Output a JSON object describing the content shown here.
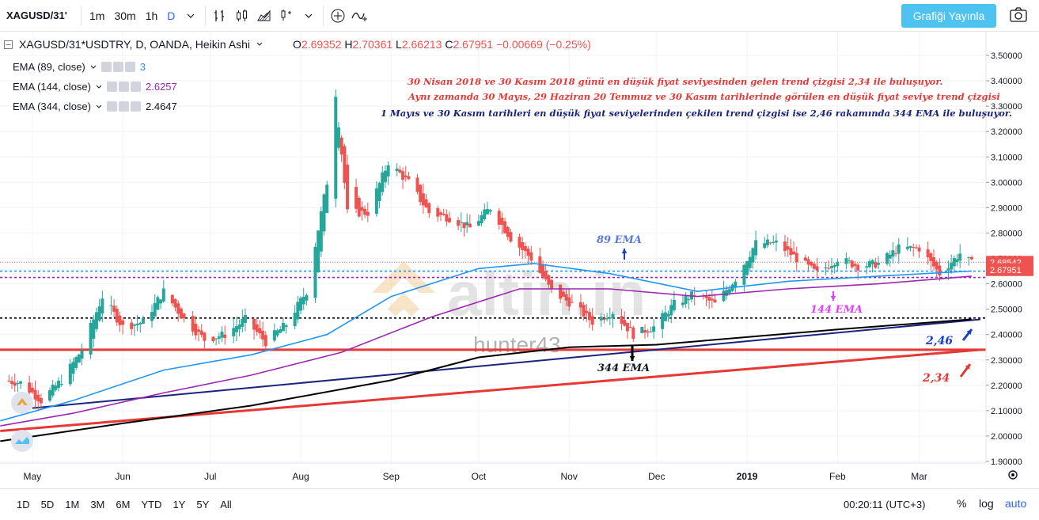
{
  "toolbar": {
    "symbol": "XAGUSD/31'",
    "timeframes": [
      "1m",
      "30m",
      "1h",
      "D"
    ],
    "publish_label": "Grafiği Yayınla"
  },
  "legend": {
    "title": "XAGUSD/31*USDTRY, D, OANDA, Heikin Ashi",
    "open_label": "O",
    "open": "2.69352",
    "high_label": "H",
    "high": "2.70361",
    "low_label": "L",
    "low": "2.66213",
    "close_label": "C",
    "close": "2.67951",
    "change": "−0.00669 (−0.25%)",
    "indicators": [
      {
        "label": "EMA (89, close)",
        "value": "3",
        "color": "#2196f3"
      },
      {
        "label": "EMA (144, close)",
        "value": "2.6257",
        "color": "#9c27b0"
      },
      {
        "label": "EMA (344, close)",
        "value": "2.4647",
        "color": "#131722"
      }
    ]
  },
  "annotations": {
    "note1": "30 Nisan 2018 ve 30 Kasım 2018 günü en düşük fiyat seviyesinden gelen trend çizgisi 2,34 ile buluşuyor.",
    "note2": "Aynı zamanda 30 Mayıs, 29 Haziran 20 Temmuz ve 30 Kasım tarihlerinde görülen en düşük fiyat seviye trend çizgisi",
    "note3": "1 Mayıs ve 30 Kasım tarihleri en düşük fiyat seviyelerinden çekilen trend çizgisi ise 2,46 rakamında 344 EMA  ile buluşuyor.",
    "ema89": "89 EMA",
    "ema144": "144 EMA",
    "ema344": "344 EMA",
    "level246": "2,46",
    "level234": "2,34",
    "watermark": "hunter43",
    "logo_text": "altin.in"
  },
  "bottom": {
    "ranges": [
      "1D",
      "5D",
      "1M",
      "3M",
      "6M",
      "YTD",
      "1Y",
      "5Y",
      "All"
    ],
    "clock": "00:20:11 (UTC+3)",
    "percent": "%",
    "log": "log",
    "auto": "auto"
  },
  "chart_data": {
    "type": "candlestick",
    "style": "Heikin Ashi",
    "x_tick_labels": [
      "May",
      "Jun",
      "Jul",
      "Aug",
      "Sep",
      "Oct",
      "Nov",
      "Dec",
      "2019",
      "Feb",
      "Mar"
    ],
    "y_ticks": [
      1.9,
      2.0,
      2.1,
      2.2,
      2.3,
      2.4,
      2.5,
      2.6,
      2.7,
      2.8,
      2.9,
      3.0,
      3.1,
      3.2,
      3.3,
      3.4,
      3.5
    ],
    "y_tick_labels": [
      "1.90000",
      "2.00000",
      "2.10000",
      "2.20000",
      "2.30000",
      "2.40000",
      "2.50000",
      "2.60000",
      "2.70000",
      "2.80000",
      "2.90000",
      "3.00000",
      "3.10000",
      "3.20000",
      "3.30000",
      "3.40000",
      "3.50000"
    ],
    "ylim": [
      1.88,
      3.53
    ],
    "price_label_high": "2.68542",
    "price_label_close": "2.67951",
    "close_points": [
      [
        "2018-04-20",
        2.22
      ],
      [
        "2018-04-27",
        2.21
      ],
      [
        "2018-05-04",
        2.14
      ],
      [
        "2018-05-11",
        2.22
      ],
      [
        "2018-05-18",
        2.34
      ],
      [
        "2018-05-25",
        2.55
      ],
      [
        "2018-06-01",
        2.43
      ],
      [
        "2018-06-08",
        2.45
      ],
      [
        "2018-06-15",
        2.57
      ],
      [
        "2018-06-22",
        2.46
      ],
      [
        "2018-06-29",
        2.38
      ],
      [
        "2018-07-06",
        2.4
      ],
      [
        "2018-07-13",
        2.46
      ],
      [
        "2018-07-20",
        2.37
      ],
      [
        "2018-07-27",
        2.44
      ],
      [
        "2018-08-03",
        2.57
      ],
      [
        "2018-08-10",
        3.0
      ],
      [
        "2018-08-13",
        3.35
      ],
      [
        "2018-08-17",
        2.88
      ],
      [
        "2018-08-24",
        2.88
      ],
      [
        "2018-08-31",
        3.08
      ],
      [
        "2018-09-07",
        3.0
      ],
      [
        "2018-09-14",
        2.88
      ],
      [
        "2018-09-21",
        2.86
      ],
      [
        "2018-09-28",
        2.82
      ],
      [
        "2018-10-05",
        2.9
      ],
      [
        "2018-10-12",
        2.78
      ],
      [
        "2018-10-19",
        2.7
      ],
      [
        "2018-10-26",
        2.57
      ],
      [
        "2018-11-02",
        2.52
      ],
      [
        "2018-11-09",
        2.45
      ],
      [
        "2018-11-16",
        2.49
      ],
      [
        "2018-11-23",
        2.4
      ],
      [
        "2018-11-30",
        2.43
      ],
      [
        "2018-12-07",
        2.52
      ],
      [
        "2018-12-14",
        2.56
      ],
      [
        "2018-12-21",
        2.52
      ],
      [
        "2018-12-28",
        2.62
      ],
      [
        "2019-01-04",
        2.76
      ],
      [
        "2019-01-11",
        2.76
      ],
      [
        "2019-01-18",
        2.7
      ],
      [
        "2019-01-25",
        2.64
      ],
      [
        "2019-02-01",
        2.7
      ],
      [
        "2019-02-08",
        2.67
      ],
      [
        "2019-02-15",
        2.68
      ],
      [
        "2019-02-22",
        2.74
      ],
      [
        "2019-03-01",
        2.74
      ],
      [
        "2019-03-08",
        2.64
      ],
      [
        "2019-03-15",
        2.72
      ],
      [
        "2019-03-19",
        2.68
      ]
    ],
    "series": [
      {
        "name": "EMA (89, close)",
        "color": "#2196f3",
        "points": [
          [
            "2018-04-20",
            2.06
          ],
          [
            "2018-05-15",
            2.14
          ],
          [
            "2018-06-15",
            2.26
          ],
          [
            "2018-07-15",
            2.32
          ],
          [
            "2018-08-10",
            2.4
          ],
          [
            "2018-09-01",
            2.55
          ],
          [
            "2018-10-01",
            2.66
          ],
          [
            "2018-10-20",
            2.68
          ],
          [
            "2018-11-15",
            2.64
          ],
          [
            "2018-12-15",
            2.57
          ],
          [
            "2019-01-15",
            2.61
          ],
          [
            "2019-02-15",
            2.63
          ],
          [
            "2019-03-19",
            2.65
          ]
        ]
      },
      {
        "name": "EMA (144, close)",
        "color": "#9c27b0",
        "points": [
          [
            "2018-04-20",
            2.04
          ],
          [
            "2018-05-15",
            2.09
          ],
          [
            "2018-06-15",
            2.17
          ],
          [
            "2018-07-15",
            2.24
          ],
          [
            "2018-08-15",
            2.33
          ],
          [
            "2018-09-15",
            2.47
          ],
          [
            "2018-10-15",
            2.58
          ],
          [
            "2018-11-15",
            2.58
          ],
          [
            "2018-12-15",
            2.55
          ],
          [
            "2019-01-15",
            2.58
          ],
          [
            "2019-02-15",
            2.6
          ],
          [
            "2019-03-19",
            2.63
          ]
        ]
      },
      {
        "name": "EMA (344, close)",
        "color": "#000000",
        "points": [
          [
            "2018-04-20",
            1.98
          ],
          [
            "2018-06-01",
            2.05
          ],
          [
            "2018-07-15",
            2.12
          ],
          [
            "2018-09-01",
            2.22
          ],
          [
            "2018-10-01",
            2.31
          ],
          [
            "2018-11-01",
            2.35
          ],
          [
            "2018-12-01",
            2.36
          ],
          [
            "2019-01-01",
            2.39
          ],
          [
            "2019-02-01",
            2.42
          ],
          [
            "2019-03-19",
            2.46
          ]
        ]
      }
    ],
    "trendlines": [
      {
        "color": "#e53935",
        "from": [
          "2018-04-20",
          2.02
        ],
        "to": [
          "2019-03-22",
          2.34
        ]
      },
      {
        "color": "#1a237e",
        "from": [
          "2018-05-01",
          2.11
        ],
        "to": [
          "2019-03-22",
          2.46
        ]
      }
    ],
    "horizontal_lines": [
      {
        "y": 2.34,
        "color": "#e53935",
        "style": "solid"
      },
      {
        "y": 2.465,
        "color": "#000000",
        "style": "dashed"
      },
      {
        "y": 2.65,
        "color": "#2196f3",
        "style": "dashed"
      },
      {
        "y": 2.625,
        "color": "#9c27b0",
        "style": "dashed"
      },
      {
        "y": 2.685,
        "color": "#ef5350",
        "style": "dotted"
      }
    ]
  }
}
